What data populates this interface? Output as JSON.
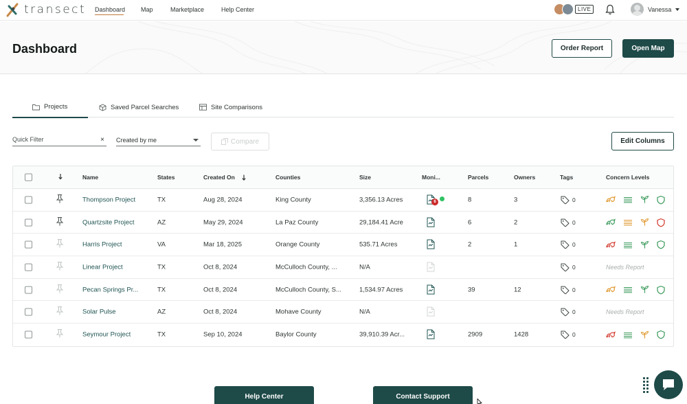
{
  "brand": {
    "name": "transect"
  },
  "nav": {
    "links": [
      "Dashboard",
      "Map",
      "Marketplace",
      "Help Center"
    ],
    "live_label": "LIVE",
    "user_name": "Vanessa"
  },
  "header": {
    "title": "Dashboard",
    "order_report_label": "Order Report",
    "open_map_label": "Open Map"
  },
  "tabs": [
    "Projects",
    "Saved Parcel Searches",
    "Site Comparisons"
  ],
  "filters": {
    "quick_filter_placeholder": "Quick Filter",
    "clear_glyph": "×",
    "created_by_value": "Created by me",
    "compare_label": "Compare",
    "edit_columns_label": "Edit Columns"
  },
  "table": {
    "columns": [
      "Name",
      "States",
      "Created On",
      "Counties",
      "Size",
      "Moni...",
      "Parcels",
      "Owners",
      "Tags",
      "Concern Levels"
    ],
    "rows": [
      {
        "pinned": true,
        "name": "Thompson Project",
        "state": "TX",
        "created": "Aug 28, 2024",
        "county": "King County",
        "size": "3,356.13 Acres",
        "monitor": "active",
        "monitor_badge": "6",
        "monitor_live": true,
        "parcels": "8",
        "owners": "3",
        "tags": "0",
        "needs_report": false,
        "concern": [
          "orange",
          "green",
          "green",
          "green"
        ]
      },
      {
        "pinned": true,
        "name": "Quartzsite Project",
        "state": "AZ",
        "created": "May 29, 2024",
        "county": "La Paz County",
        "size": "29,184.41 Acre",
        "monitor": "active",
        "monitor_badge": "",
        "monitor_live": false,
        "parcels": "6",
        "owners": "2",
        "tags": "0",
        "needs_report": false,
        "concern": [
          "green",
          "orange",
          "orange",
          "red"
        ]
      },
      {
        "pinned": false,
        "name": "Harris Project",
        "state": "VA",
        "created": "Mar 18, 2025",
        "county": "Orange County",
        "size": "535.71 Acres",
        "monitor": "active",
        "monitor_badge": "",
        "monitor_live": false,
        "parcels": "2",
        "owners": "1",
        "tags": "0",
        "needs_report": false,
        "concern": [
          "red",
          "green",
          "green",
          "green"
        ]
      },
      {
        "pinned": false,
        "name": "Linear Project",
        "state": "TX",
        "created": "Oct 8, 2024",
        "county": "McCulloch County, ...",
        "size": "N/A",
        "monitor": "inactive",
        "monitor_badge": "",
        "monitor_live": false,
        "parcels": "",
        "owners": "",
        "tags": "0",
        "needs_report": true,
        "needs_report_label": "Needs Report",
        "concern": []
      },
      {
        "pinned": false,
        "name": "Pecan Springs Pr...",
        "state": "TX",
        "created": "Oct 8, 2024",
        "county": "McCulloch County, S...",
        "size": "1,534.97 Acres",
        "monitor": "active",
        "monitor_badge": "",
        "monitor_live": false,
        "parcels": "39",
        "owners": "12",
        "tags": "0",
        "needs_report": false,
        "concern": [
          "orange",
          "green",
          "green",
          "green"
        ]
      },
      {
        "pinned": false,
        "name": "Solar Pulse",
        "state": "AZ",
        "created": "Oct 8, 2024",
        "county": "Mohave County",
        "size": "N/A",
        "monitor": "inactive",
        "monitor_badge": "",
        "monitor_live": false,
        "parcels": "",
        "owners": "",
        "tags": "0",
        "needs_report": true,
        "needs_report_label": "Needs Report",
        "concern": []
      },
      {
        "pinned": false,
        "name": "Seymour Project",
        "state": "TX",
        "created": "Sep 10, 2024",
        "county": "Baylor County",
        "size": "39,910.39 Acr...",
        "monitor": "active",
        "monitor_badge": "",
        "monitor_live": false,
        "parcels": "2909",
        "owners": "1428",
        "tags": "0",
        "needs_report": false,
        "concern": [
          "red",
          "green",
          "orange",
          "green"
        ]
      }
    ]
  },
  "footer": {
    "help_center_label": "Help Center",
    "contact_support_label": "Contact Support"
  },
  "colors": {
    "brand_teal": "#1e4a48",
    "link_teal": "#1f5452",
    "concern_green": "#3a9a5b",
    "concern_orange": "#e0982e",
    "concern_red": "#d2372c",
    "accent_underline": "#c07a3a"
  },
  "icons": {
    "logo": "transect-logo-icon",
    "bell": "bell-icon",
    "tab_projects": "folder-icon",
    "tab_saved": "box-icon",
    "tab_site": "table-icon",
    "compare": "compare-icon",
    "sort": "sort-down-arrow-icon",
    "pin": "pin-icon",
    "monitor": "document-report-icon",
    "tag": "tag-icon",
    "concern": [
      "habitat-icon",
      "wetlands-icon",
      "vegetation-icon",
      "shield-icon"
    ],
    "chat": "chat-icon"
  }
}
